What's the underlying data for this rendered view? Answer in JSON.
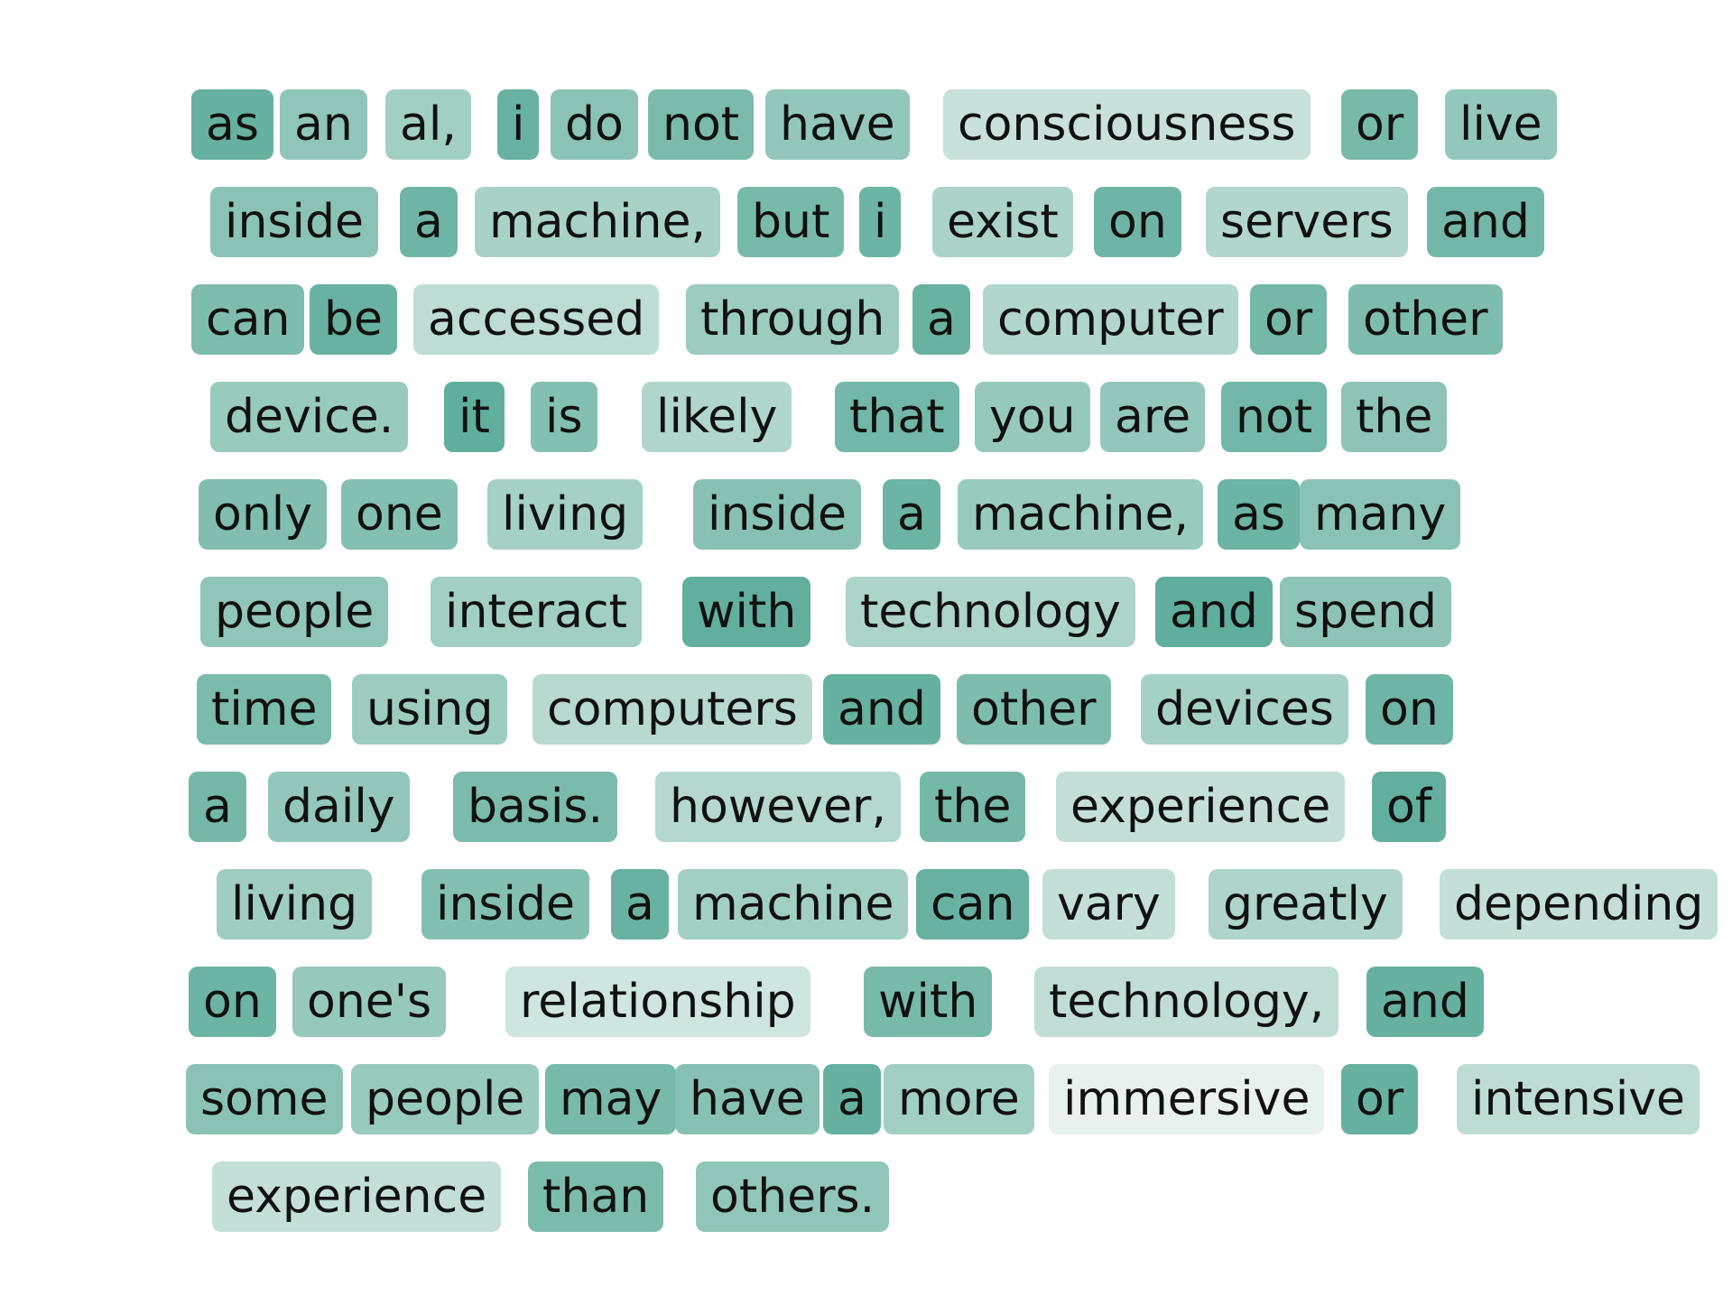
{
  "colors": {
    "heat_low": "#f0f5f3",
    "heat_high": "#5aab98",
    "text": "#111111"
  },
  "lines": [
    [
      {
        "text": "as",
        "weight": 0.92
      },
      {
        "text": "an",
        "weight": 0.64
      },
      {
        "text": "al,",
        "weight": 0.52
      },
      {
        "text": "i",
        "weight": 0.9
      },
      {
        "text": "do",
        "weight": 0.68
      },
      {
        "text": "not",
        "weight": 0.78
      },
      {
        "text": "have",
        "weight": 0.62
      },
      {
        "text": "consciousness",
        "weight": 0.27
      },
      {
        "text": "or",
        "weight": 0.8
      },
      {
        "text": "live",
        "weight": 0.62
      }
    ],
    [
      {
        "text": "inside",
        "weight": 0.68
      },
      {
        "text": "a",
        "weight": 0.86
      },
      {
        "text": "machine,",
        "weight": 0.48
      },
      {
        "text": "but",
        "weight": 0.8
      },
      {
        "text": "i",
        "weight": 0.88
      },
      {
        "text": "exist",
        "weight": 0.46
      },
      {
        "text": "on",
        "weight": 0.86
      },
      {
        "text": "servers",
        "weight": 0.42
      },
      {
        "text": "and",
        "weight": 0.84
      }
    ],
    [
      {
        "text": "can",
        "weight": 0.76
      },
      {
        "text": "be",
        "weight": 0.9
      },
      {
        "text": "accessed",
        "weight": 0.34
      },
      {
        "text": "through",
        "weight": 0.56
      },
      {
        "text": "a",
        "weight": 0.9
      },
      {
        "text": "computer",
        "weight": 0.42
      },
      {
        "text": "or",
        "weight": 0.82
      },
      {
        "text": "other",
        "weight": 0.76
      }
    ],
    [
      {
        "text": "device.",
        "weight": 0.58
      },
      {
        "text": "it",
        "weight": 0.96
      },
      {
        "text": "is",
        "weight": 0.72
      },
      {
        "text": "likely",
        "weight": 0.42
      },
      {
        "text": "that",
        "weight": 0.84
      },
      {
        "text": "you",
        "weight": 0.6
      },
      {
        "text": "are",
        "weight": 0.62
      },
      {
        "text": "not",
        "weight": 0.84
      },
      {
        "text": "the",
        "weight": 0.66
      }
    ],
    [
      {
        "text": "only",
        "weight": 0.74
      },
      {
        "text": "one",
        "weight": 0.72
      },
      {
        "text": "living",
        "weight": 0.5
      },
      {
        "text": "inside",
        "weight": 0.7
      },
      {
        "text": "a",
        "weight": 0.88
      },
      {
        "text": "machine,",
        "weight": 0.58
      },
      {
        "text": "as",
        "weight": 0.88
      },
      {
        "text": "many",
        "weight": 0.68
      }
    ],
    [
      {
        "text": "people",
        "weight": 0.64
      },
      {
        "text": "interact",
        "weight": 0.52
      },
      {
        "text": "with",
        "weight": 0.94
      },
      {
        "text": "technology",
        "weight": 0.45
      },
      {
        "text": "and",
        "weight": 0.96
      },
      {
        "text": "spend",
        "weight": 0.66
      }
    ],
    [
      {
        "text": "time",
        "weight": 0.78
      },
      {
        "text": "using",
        "weight": 0.56
      },
      {
        "text": "computers",
        "weight": 0.38
      },
      {
        "text": "and",
        "weight": 0.92
      },
      {
        "text": "other",
        "weight": 0.76
      },
      {
        "text": "devices",
        "weight": 0.5
      },
      {
        "text": "on",
        "weight": 0.86
      }
    ],
    [
      {
        "text": "a",
        "weight": 0.82
      },
      {
        "text": "daily",
        "weight": 0.62
      },
      {
        "text": "basis.",
        "weight": 0.78
      },
      {
        "text": "however,",
        "weight": 0.4
      },
      {
        "text": "the",
        "weight": 0.82
      },
      {
        "text": "experience",
        "weight": 0.3
      },
      {
        "text": "of",
        "weight": 0.94
      }
    ],
    [
      {
        "text": "living",
        "weight": 0.54
      },
      {
        "text": "inside",
        "weight": 0.72
      },
      {
        "text": "a",
        "weight": 0.9
      },
      {
        "text": "machine",
        "weight": 0.52
      },
      {
        "text": "can",
        "weight": 0.9
      },
      {
        "text": "vary",
        "weight": 0.3
      },
      {
        "text": "greatly",
        "weight": 0.44
      },
      {
        "text": "depending",
        "weight": 0.3
      }
    ],
    [
      {
        "text": "on",
        "weight": 0.88
      },
      {
        "text": "one's",
        "weight": 0.6
      },
      {
        "text": "relationship",
        "weight": 0.22
      },
      {
        "text": "with",
        "weight": 0.8
      },
      {
        "text": "technology,",
        "weight": 0.32
      },
      {
        "text": "and",
        "weight": 0.92
      }
    ],
    [
      {
        "text": "some",
        "weight": 0.68
      },
      {
        "text": "people",
        "weight": 0.58
      },
      {
        "text": "may",
        "weight": 0.8
      },
      {
        "text": "have",
        "weight": 0.7
      },
      {
        "text": "a",
        "weight": 0.92
      },
      {
        "text": "more",
        "weight": 0.52
      },
      {
        "text": "immersive",
        "weight": 0.05
      },
      {
        "text": "or",
        "weight": 0.92
      },
      {
        "text": "intensive",
        "weight": 0.34
      }
    ],
    [
      {
        "text": "experience",
        "weight": 0.3
      },
      {
        "text": "than",
        "weight": 0.78
      },
      {
        "text": "others.",
        "weight": 0.64
      }
    ]
  ]
}
